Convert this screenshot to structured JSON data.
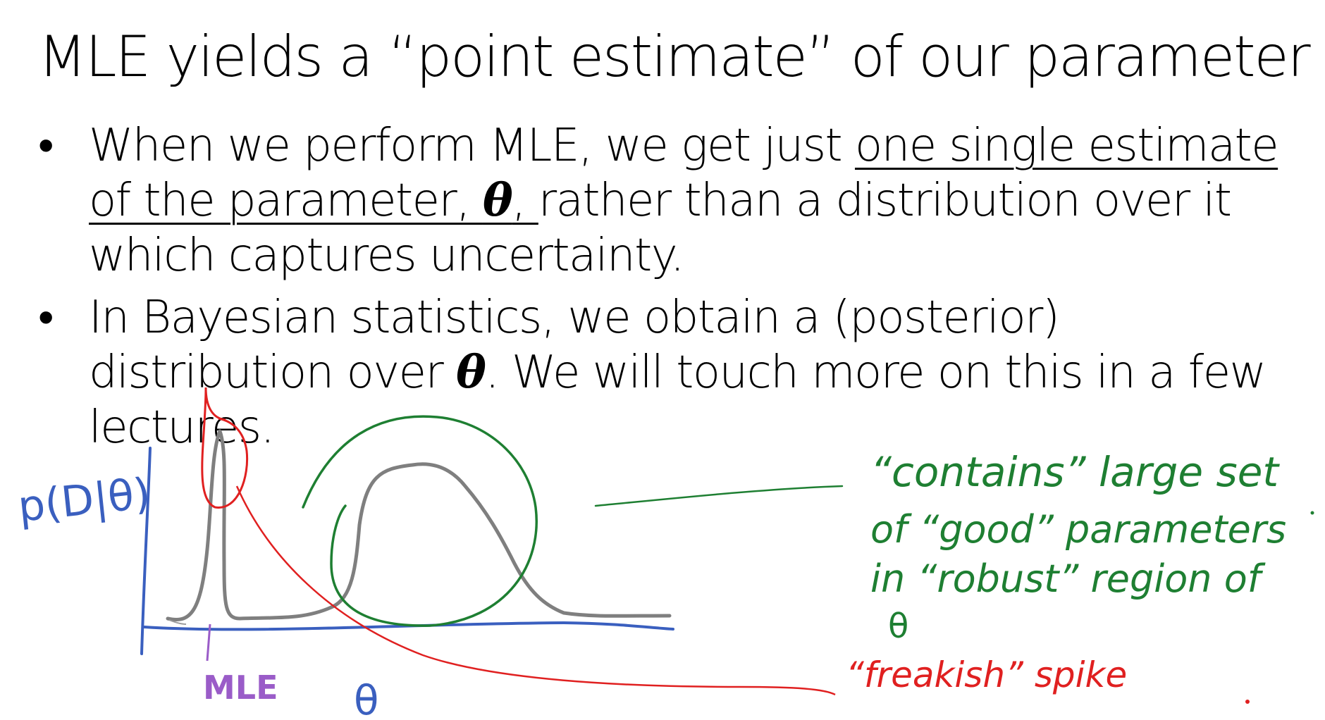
{
  "slide": {
    "title": "MLE yields a “point estimate” of our parameter",
    "bullet_char": "•",
    "bullets": [
      {
        "pre": "When we perform MLE, we get just ",
        "underlined": "one single estimate of the parameter, ",
        "symbol": "θ",
        "underlined_tail": ", ",
        "post": "rather than a distribution over it which captures uncertainty."
      },
      {
        "pre": "In Bayesian statistics, we obtain a (posterior) distribution over ",
        "symbol": "θ",
        "post": ". We will touch more on this in a few lectures."
      }
    ]
  },
  "annotations": {
    "y_axis_label": "p(D|θ)",
    "x_axis_label": "θ",
    "mle_label": "MLE",
    "green_note_lines": [
      "“contains” large set",
      "of “good” parameters",
      "in “robust” region of",
      "θ"
    ],
    "red_note": "“freakish” spike",
    "colors": {
      "axis_ink": "#3a5fbf",
      "curve_ink": "#7f7f7f",
      "red_ink": "#e02020",
      "green_ink": "#1e7f32",
      "purple_ink": "#9a5cc8"
    }
  }
}
